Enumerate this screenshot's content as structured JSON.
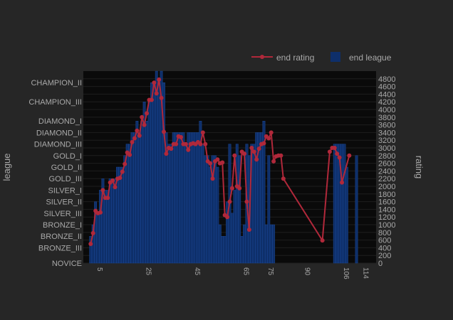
{
  "chart_data": {
    "type": "bar+line",
    "title": "",
    "xlabel": "",
    "ylabel_left": "league",
    "ylabel_right": "rating",
    "colors": {
      "background": "#262626",
      "plot_background": "#0a0a0a",
      "text": "#a9a9a9",
      "grid": "#1e1e1e",
      "bar": "#0e2f6a",
      "bar_edge": "#1f4ea1",
      "line": "#b0283a"
    },
    "legend": [
      {
        "name": "end rating",
        "style": "line-marker",
        "color": "#b0283a"
      },
      {
        "name": "end league",
        "style": "bar",
        "color": "#0e2f6a"
      }
    ],
    "legend_placement": "top-right",
    "league_axis": {
      "ticks": [
        "NOVICE",
        "BRONZE_III",
        "BRONZE_II",
        "BRONZE_I",
        "SILVER_III",
        "SILVER_II",
        "SILVER_I",
        "GOLD_III",
        "GOLD_II",
        "GOLD_I",
        "DIAMOND_III",
        "DIAMOND_II",
        "DIAMOND_I",
        "CHAMPION_III",
        "CHAMPION_II"
      ],
      "rating_values": [
        0,
        400,
        700,
        1000,
        1300,
        1600,
        1900,
        2200,
        2500,
        2800,
        3100,
        3400,
        3700,
        4200,
        4700
      ]
    },
    "rating_axis": {
      "ticks": [
        0,
        200,
        400,
        600,
        800,
        1000,
        1200,
        1400,
        1600,
        1800,
        2000,
        2200,
        2400,
        2600,
        2800,
        3000,
        3200,
        3400,
        3600,
        3800,
        4000,
        4200,
        4400,
        4600,
        4800
      ],
      "range": [
        0,
        5000
      ]
    },
    "x_range": [
      0,
      120
    ],
    "x_tick_label_groups": [
      {
        "x": 5,
        "text": "5"
      },
      {
        "x": 25,
        "text": "25"
      },
      {
        "x": 45,
        "text": "45"
      },
      {
        "x": 65,
        "text": "65"
      },
      {
        "x": 75,
        "text": "75"
      },
      {
        "x": 90,
        "text": "90"
      },
      {
        "x": 106,
        "text": "106"
      },
      {
        "x": 114,
        "text": "114"
      }
    ],
    "bars": [
      {
        "x": 3,
        "v": 700
      },
      {
        "x": 4,
        "v": 1000
      },
      {
        "x": 5,
        "v": 1600
      },
      {
        "x": 6,
        "v": 1300
      },
      {
        "x": 7,
        "v": 1900
      },
      {
        "x": 8,
        "v": 2200
      },
      {
        "x": 9,
        "v": 1900
      },
      {
        "x": 10,
        "v": 1900
      },
      {
        "x": 11,
        "v": 2200
      },
      {
        "x": 12,
        "v": 2200
      },
      {
        "x": 13,
        "v": 2200
      },
      {
        "x": 14,
        "v": 2500
      },
      {
        "x": 15,
        "v": 2500
      },
      {
        "x": 16,
        "v": 2500
      },
      {
        "x": 17,
        "v": 2800
      },
      {
        "x": 18,
        "v": 3100
      },
      {
        "x": 19,
        "v": 3100
      },
      {
        "x": 20,
        "v": 3400
      },
      {
        "x": 21,
        "v": 3400
      },
      {
        "x": 22,
        "v": 3700
      },
      {
        "x": 23,
        "v": 3400
      },
      {
        "x": 24,
        "v": 3700
      },
      {
        "x": 25,
        "v": 4200
      },
      {
        "x": 26,
        "v": 3700
      },
      {
        "x": 27,
        "v": 4200
      },
      {
        "x": 28,
        "v": 4700
      },
      {
        "x": 29,
        "v": 4700
      },
      {
        "x": 30,
        "v": 5000
      },
      {
        "x": 31,
        "v": 4700
      },
      {
        "x": 32,
        "v": 5000
      },
      {
        "x": 33,
        "v": 4700
      },
      {
        "x": 34,
        "v": 3400
      },
      {
        "x": 35,
        "v": 3100
      },
      {
        "x": 36,
        "v": 3100
      },
      {
        "x": 37,
        "v": 3400
      },
      {
        "x": 38,
        "v": 3400
      },
      {
        "x": 39,
        "v": 3400
      },
      {
        "x": 40,
        "v": 3400
      },
      {
        "x": 41,
        "v": 3400
      },
      {
        "x": 42,
        "v": 3100
      },
      {
        "x": 43,
        "v": 3400
      },
      {
        "x": 44,
        "v": 3400
      },
      {
        "x": 45,
        "v": 3400
      },
      {
        "x": 46,
        "v": 3400
      },
      {
        "x": 47,
        "v": 3400
      },
      {
        "x": 48,
        "v": 3700
      },
      {
        "x": 49,
        "v": 3100
      },
      {
        "x": 50,
        "v": 2800
      },
      {
        "x": 51,
        "v": 2800
      },
      {
        "x": 52,
        "v": 2500
      },
      {
        "x": 53,
        "v": 2800
      },
      {
        "x": 54,
        "v": 2800
      },
      {
        "x": 55,
        "v": 2500
      },
      {
        "x": 56,
        "v": 1000
      },
      {
        "x": 57,
        "v": 700
      },
      {
        "x": 58,
        "v": 700
      },
      {
        "x": 59,
        "v": 1600
      },
      {
        "x": 60,
        "v": 3100
      },
      {
        "x": 61,
        "v": 1300
      },
      {
        "x": 62,
        "v": 1900
      },
      {
        "x": 63,
        "v": 3100
      },
      {
        "x": 64,
        "v": 2800
      },
      {
        "x": 65,
        "v": 700
      },
      {
        "x": 66,
        "v": 1000
      },
      {
        "x": 67,
        "v": 3100
      },
      {
        "x": 68,
        "v": 2800
      },
      {
        "x": 69,
        "v": 3100
      },
      {
        "x": 70,
        "v": 3100
      },
      {
        "x": 71,
        "v": 3400
      },
      {
        "x": 72,
        "v": 3400
      },
      {
        "x": 73,
        "v": 3400
      },
      {
        "x": 74,
        "v": 3700
      },
      {
        "x": 75,
        "v": 1000
      },
      {
        "x": 76,
        "v": 2800
      },
      {
        "x": 77,
        "v": 1000
      },
      {
        "x": 78,
        "v": 1000
      },
      {
        "x": 103,
        "v": 3100
      },
      {
        "x": 104,
        "v": 3100
      },
      {
        "x": 105,
        "v": 3100
      },
      {
        "x": 106,
        "v": 3100
      },
      {
        "x": 107,
        "v": 3100
      },
      {
        "x": 108,
        "v": 2500
      },
      {
        "x": 112,
        "v": 2800
      }
    ],
    "rating_series": {
      "name": "end rating",
      "points": [
        [
          3,
          500
        ],
        [
          4,
          780
        ],
        [
          5,
          1360
        ],
        [
          6,
          1300
        ],
        [
          7,
          1320
        ],
        [
          8,
          1900
        ],
        [
          9,
          1700
        ],
        [
          10,
          1700
        ],
        [
          11,
          2100
        ],
        [
          12,
          2150
        ],
        [
          13,
          1980
        ],
        [
          14,
          2200
        ],
        [
          15,
          2220
        ],
        [
          16,
          2380
        ],
        [
          17,
          2580
        ],
        [
          18,
          2880
        ],
        [
          19,
          2820
        ],
        [
          20,
          3150
        ],
        [
          21,
          3250
        ],
        [
          22,
          3450
        ],
        [
          23,
          3320
        ],
        [
          24,
          3800
        ],
        [
          25,
          3600
        ],
        [
          26,
          3900
        ],
        [
          27,
          4250
        ],
        [
          28,
          4250
        ],
        [
          29,
          4700
        ],
        [
          30,
          4420
        ],
        [
          31,
          4780
        ],
        [
          32,
          4300
        ],
        [
          33,
          3420
        ],
        [
          34,
          2850
        ],
        [
          35,
          3000
        ],
        [
          36,
          2980
        ],
        [
          37,
          3100
        ],
        [
          38,
          3100
        ],
        [
          39,
          3300
        ],
        [
          40,
          3280
        ],
        [
          41,
          3100
        ],
        [
          42,
          3100
        ],
        [
          43,
          2950
        ],
        [
          44,
          3100
        ],
        [
          45,
          3120
        ],
        [
          46,
          3100
        ],
        [
          47,
          3150
        ],
        [
          48,
          3100
        ],
        [
          49,
          3400
        ],
        [
          50,
          3100
        ],
        [
          51,
          2650
        ],
        [
          52,
          2600
        ],
        [
          53,
          2200
        ],
        [
          54,
          2650
        ],
        [
          55,
          2700
        ],
        [
          56,
          2600
        ],
        [
          57,
          2620
        ],
        [
          58,
          1250
        ],
        [
          59,
          1200
        ],
        [
          60,
          1600
        ],
        [
          61,
          1950
        ],
        [
          62,
          2800
        ],
        [
          63,
          2000
        ],
        [
          64,
          1950
        ],
        [
          65,
          2900
        ],
        [
          66,
          2850
        ],
        [
          67,
          1600
        ],
        [
          68,
          870
        ],
        [
          69,
          3000
        ],
        [
          70,
          2900
        ],
        [
          71,
          2700
        ],
        [
          72,
          2980
        ],
        [
          73,
          3100
        ],
        [
          74,
          3120
        ],
        [
          75,
          3300
        ],
        [
          76,
          3250
        ],
        [
          77,
          3400
        ],
        [
          78,
          2650
        ],
        [
          79,
          2780
        ],
        [
          80,
          2800
        ],
        [
          81,
          2800
        ],
        [
          82,
          2200
        ],
        [
          98,
          590
        ],
        [
          101,
          2900
        ],
        [
          102,
          3000
        ],
        [
          103,
          3000
        ],
        [
          104,
          2850
        ],
        [
          105,
          2750
        ],
        [
          106,
          2100
        ],
        [
          109,
          2800
        ]
      ]
    }
  }
}
